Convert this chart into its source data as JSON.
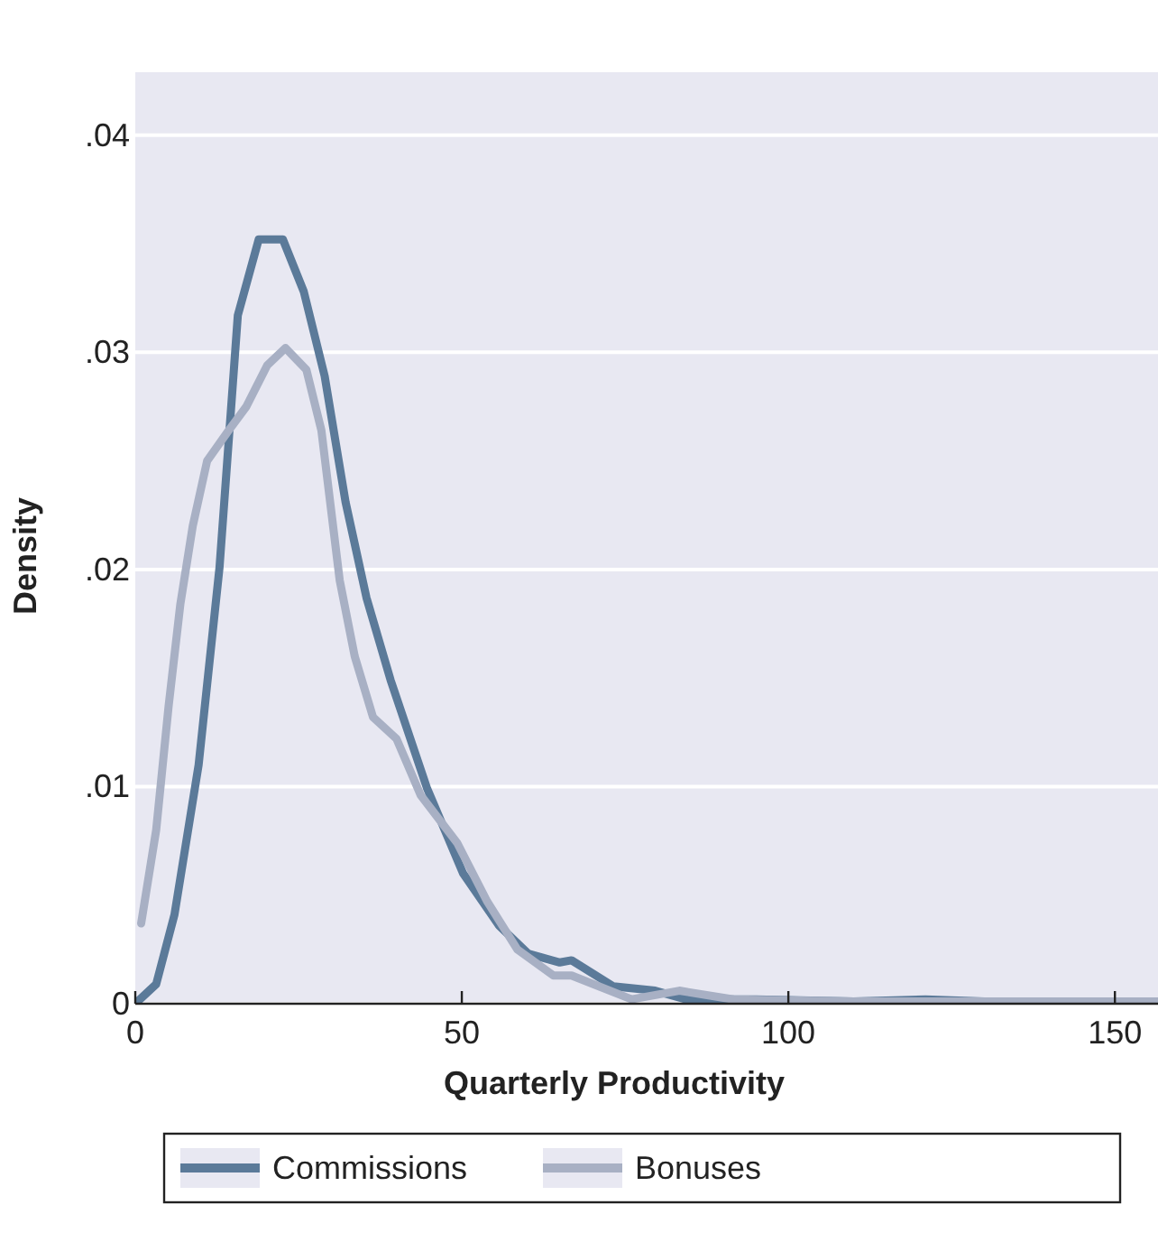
{
  "chart_data": {
    "type": "line",
    "xlabel": "Quarterly Productivity",
    "ylabel": "Density",
    "xlim": [
      0,
      156.6
    ],
    "xticks": [
      0,
      50,
      100,
      150
    ],
    "ylim": [
      0,
      0.0429
    ],
    "yticks": [
      {
        "value": 0,
        "label": "0"
      },
      {
        "value": 0.01,
        "label": ".01"
      },
      {
        "value": 0.02,
        "label": ".02"
      },
      {
        "value": 0.03,
        "label": ".03"
      },
      {
        "value": 0.04,
        "label": ".04"
      }
    ],
    "grid": "y",
    "legend": "bottom",
    "line_style": "solid",
    "series": [
      {
        "name": "Commissions",
        "color": "#5b7a99",
        "x": [
          0,
          3.2,
          6,
          9.7,
          12.9,
          15.7,
          18.9,
          22.6,
          25.8,
          29,
          32.2,
          35.4,
          39.1,
          44.7,
          50.2,
          55.7,
          60.2,
          65,
          66.8,
          73.2,
          79.6,
          84.3,
          95,
          110,
          121,
          130,
          145,
          156.6
        ],
        "values": [
          0,
          0.0009,
          0.0041,
          0.011,
          0.0201,
          0.0317,
          0.0352,
          0.0352,
          0.0328,
          0.0289,
          0.0231,
          0.0187,
          0.0149,
          0.0099,
          0.006,
          0.0036,
          0.0023,
          0.0019,
          0.002,
          0.0008,
          0.0006,
          0.0002,
          0.0002,
          0.0001,
          0.0002,
          0.0001,
          0.0001,
          0.0001
        ]
      },
      {
        "name": "Bonuses",
        "color": "#a8b0c4",
        "x": [
          0.9,
          3.2,
          5.1,
          6.9,
          8.8,
          11,
          14.3,
          17,
          20.2,
          23,
          26.2,
          28.5,
          31.3,
          33.6,
          36.4,
          40,
          43.7,
          49.3,
          53.9,
          58.5,
          64,
          66.8,
          76,
          83.3,
          91.6,
          110,
          130,
          156.6
        ],
        "values": [
          0.0037,
          0.008,
          0.0137,
          0.0184,
          0.022,
          0.025,
          0.0264,
          0.0275,
          0.0294,
          0.0302,
          0.0292,
          0.0264,
          0.0195,
          0.016,
          0.0132,
          0.0122,
          0.0096,
          0.0074,
          0.0047,
          0.0025,
          0.0013,
          0.0013,
          0.0002,
          0.0006,
          0.0002,
          0.0001,
          0.0001,
          0.0001
        ]
      }
    ]
  }
}
